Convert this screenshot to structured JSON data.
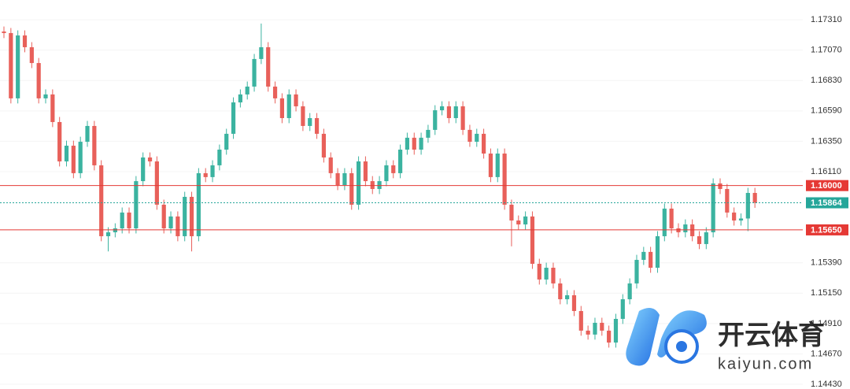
{
  "chart_data": {
    "type": "candlestick",
    "open": [
      1.17217,
      1.17205,
      1.16689,
      1.17186,
      1.17093,
      1.16968,
      1.16689,
      1.1672,
      1.16502,
      1.16191,
      1.16315,
      1.16098,
      1.16346,
      1.16471,
      1.1616,
      1.156,
      1.15631,
      1.15662,
      1.15787,
      1.15662,
      1.16035,
      1.16222,
      1.16191,
      1.15849,
      1.15662,
      1.15756,
      1.156,
      1.15911,
      1.156,
      1.16098,
      1.16067,
      1.1616,
      1.16284,
      1.16409,
      1.16657,
      1.1672,
      1.16782,
      1.17,
      1.17093,
      1.16782,
      1.16689,
      1.16533,
      1.1672,
      1.16626,
      1.16471,
      1.16533,
      1.16409,
      1.16222,
      1.16098,
      1.16004,
      1.16098,
      1.15849,
      1.16191,
      1.16035,
      1.15973,
      1.16035,
      1.1616,
      1.16098,
      1.16284,
      1.16378,
      1.16284,
      1.16378,
      1.1644,
      1.16595,
      1.16626,
      1.16533,
      1.16626,
      1.1644,
      1.16346,
      1.16409,
      1.16253,
      1.16067,
      1.16253,
      1.15849,
      1.15724,
      1.15693,
      1.15756,
      1.15382,
      1.15258,
      1.15351,
      1.15227,
      1.15102,
      1.15134,
      1.15009,
      1.14854,
      1.14823,
      1.14916,
      1.14854,
      1.1476,
      1.14947,
      1.15102,
      1.15227,
      1.15413,
      1.15476,
      1.15351,
      1.156,
      1.15818,
      1.15662,
      1.15631,
      1.15693,
      1.156,
      1.15538,
      1.15631,
      1.16017,
      1.15973,
      1.15787,
      1.15724,
      1.1574,
      1.15942
    ],
    "high": [
      1.17257,
      1.17245,
      1.17226,
      1.17226,
      1.17133,
      1.17008,
      1.1676,
      1.1676,
      1.16542,
      1.16355,
      1.16355,
      1.16386,
      1.16511,
      1.16511,
      1.162,
      1.15671,
      1.15702,
      1.15827,
      1.15827,
      1.16075,
      1.16262,
      1.16262,
      1.16231,
      1.15889,
      1.15796,
      1.15796,
      1.15951,
      1.15951,
      1.16138,
      1.16138,
      1.162,
      1.16324,
      1.16449,
      1.16697,
      1.1676,
      1.16822,
      1.1704,
      1.1728,
      1.17133,
      1.16822,
      1.16729,
      1.1676,
      1.1676,
      1.16666,
      1.16573,
      1.16573,
      1.16449,
      1.16262,
      1.16138,
      1.16138,
      1.16138,
      1.16231,
      1.16231,
      1.16075,
      1.16075,
      1.162,
      1.162,
      1.16324,
      1.16418,
      1.16418,
      1.16418,
      1.1648,
      1.16635,
      1.16666,
      1.16666,
      1.16666,
      1.16666,
      1.1648,
      1.16449,
      1.16449,
      1.16293,
      1.16293,
      1.16293,
      1.15889,
      1.15764,
      1.15796,
      1.15796,
      1.15422,
      1.15391,
      1.15391,
      1.15267,
      1.15174,
      1.15174,
      1.15049,
      1.14894,
      1.14956,
      1.14956,
      1.14894,
      1.14987,
      1.15142,
      1.15267,
      1.15453,
      1.15516,
      1.15516,
      1.1564,
      1.15858,
      1.15858,
      1.15702,
      1.15733,
      1.15733,
      1.1564,
      1.15671,
      1.16057,
      1.16057,
      1.16013,
      1.15827,
      1.1578,
      1.15982,
      1.15982
    ],
    "low": [
      1.17165,
      1.16649,
      1.16649,
      1.17053,
      1.16928,
      1.16649,
      1.16649,
      1.16462,
      1.16151,
      1.16151,
      1.16058,
      1.16058,
      1.16306,
      1.1612,
      1.1556,
      1.1548,
      1.15591,
      1.15622,
      1.15622,
      1.15622,
      1.15995,
      1.16151,
      1.15809,
      1.15622,
      1.15622,
      1.1556,
      1.1556,
      1.1548,
      1.1556,
      1.16027,
      1.16027,
      1.1612,
      1.16244,
      1.16369,
      1.16617,
      1.1668,
      1.16742,
      1.1696,
      1.16742,
      1.16649,
      1.16493,
      1.16493,
      1.16586,
      1.16431,
      1.16431,
      1.16369,
      1.16182,
      1.16058,
      1.15964,
      1.15964,
      1.15809,
      1.15809,
      1.15995,
      1.15933,
      1.15933,
      1.15995,
      1.16058,
      1.16058,
      1.16244,
      1.16244,
      1.16244,
      1.16338,
      1.164,
      1.16555,
      1.16493,
      1.16493,
      1.164,
      1.16306,
      1.16306,
      1.16213,
      1.16027,
      1.16027,
      1.15809,
      1.1552,
      1.15653,
      1.15653,
      1.15342,
      1.15218,
      1.15218,
      1.15187,
      1.15062,
      1.15062,
      1.14969,
      1.14814,
      1.14783,
      1.14783,
      1.14814,
      1.1472,
      1.1472,
      1.14907,
      1.15062,
      1.15187,
      1.15373,
      1.15311,
      1.15311,
      1.1556,
      1.15622,
      1.15591,
      1.15591,
      1.1556,
      1.15498,
      1.15498,
      1.15591,
      1.15933,
      1.15747,
      1.15684,
      1.15684,
      1.1564,
      1.15824
    ],
    "close": [
      1.17205,
      1.16689,
      1.17186,
      1.17093,
      1.16968,
      1.16689,
      1.1672,
      1.16502,
      1.16191,
      1.16315,
      1.16098,
      1.16346,
      1.16471,
      1.1616,
      1.156,
      1.15631,
      1.15662,
      1.15787,
      1.15662,
      1.16035,
      1.16222,
      1.16191,
      1.15849,
      1.15662,
      1.15756,
      1.156,
      1.15911,
      1.156,
      1.16098,
      1.16067,
      1.1616,
      1.16284,
      1.16409,
      1.16657,
      1.1672,
      1.16782,
      1.17,
      1.17093,
      1.16782,
      1.16689,
      1.16533,
      1.1672,
      1.16626,
      1.16471,
      1.16533,
      1.16409,
      1.16222,
      1.16098,
      1.16004,
      1.16098,
      1.15849,
      1.16191,
      1.16035,
      1.15973,
      1.16035,
      1.1616,
      1.16098,
      1.16284,
      1.16378,
      1.16284,
      1.16378,
      1.1644,
      1.16595,
      1.16626,
      1.16533,
      1.16626,
      1.1644,
      1.16346,
      1.16409,
      1.16253,
      1.16067,
      1.16253,
      1.15849,
      1.15724,
      1.15693,
      1.15756,
      1.15382,
      1.15258,
      1.15351,
      1.15227,
      1.15102,
      1.15134,
      1.15009,
      1.14854,
      1.14823,
      1.14916,
      1.14854,
      1.1476,
      1.14947,
      1.15102,
      1.15227,
      1.15413,
      1.15476,
      1.15351,
      1.156,
      1.15818,
      1.15662,
      1.15631,
      1.15693,
      1.156,
      1.15538,
      1.15631,
      1.16017,
      1.15973,
      1.15787,
      1.15724,
      1.1574,
      1.15942,
      1.15864
    ],
    "up_color": "#3bb3a0",
    "down_color": "#e8605a",
    "ylim": [
      1.14393,
      1.17466
    ],
    "yticks": [
      {
        "value": 1.1731,
        "label": "1.17310"
      },
      {
        "value": 1.1707,
        "label": "1.17070"
      },
      {
        "value": 1.1683,
        "label": "1.16830"
      },
      {
        "value": 1.1659,
        "label": "1.16590"
      },
      {
        "value": 1.1635,
        "label": "1.16350"
      },
      {
        "value": 1.1611,
        "label": "1.16110"
      },
      {
        "value": 1.1539,
        "label": "1.15390"
      },
      {
        "value": 1.1515,
        "label": "1.15150"
      },
      {
        "value": 1.1491,
        "label": "1.14910"
      },
      {
        "value": 1.1467,
        "label": "1.14670"
      },
      {
        "value": 1.1443,
        "label": "1.14430"
      }
    ],
    "grid": true,
    "price_lines": [
      {
        "value": 1.16,
        "label": "1.16000",
        "color": "#e53935",
        "style": "solid"
      },
      {
        "value": 1.15864,
        "label": "1.15864",
        "color": "#26a69a",
        "style": "dotted"
      },
      {
        "value": 1.1565,
        "label": "1.15650",
        "color": "#e53935",
        "style": "solid"
      }
    ]
  },
  "watermark": {
    "brand": "开云体育",
    "site": "kaiyun.com"
  }
}
